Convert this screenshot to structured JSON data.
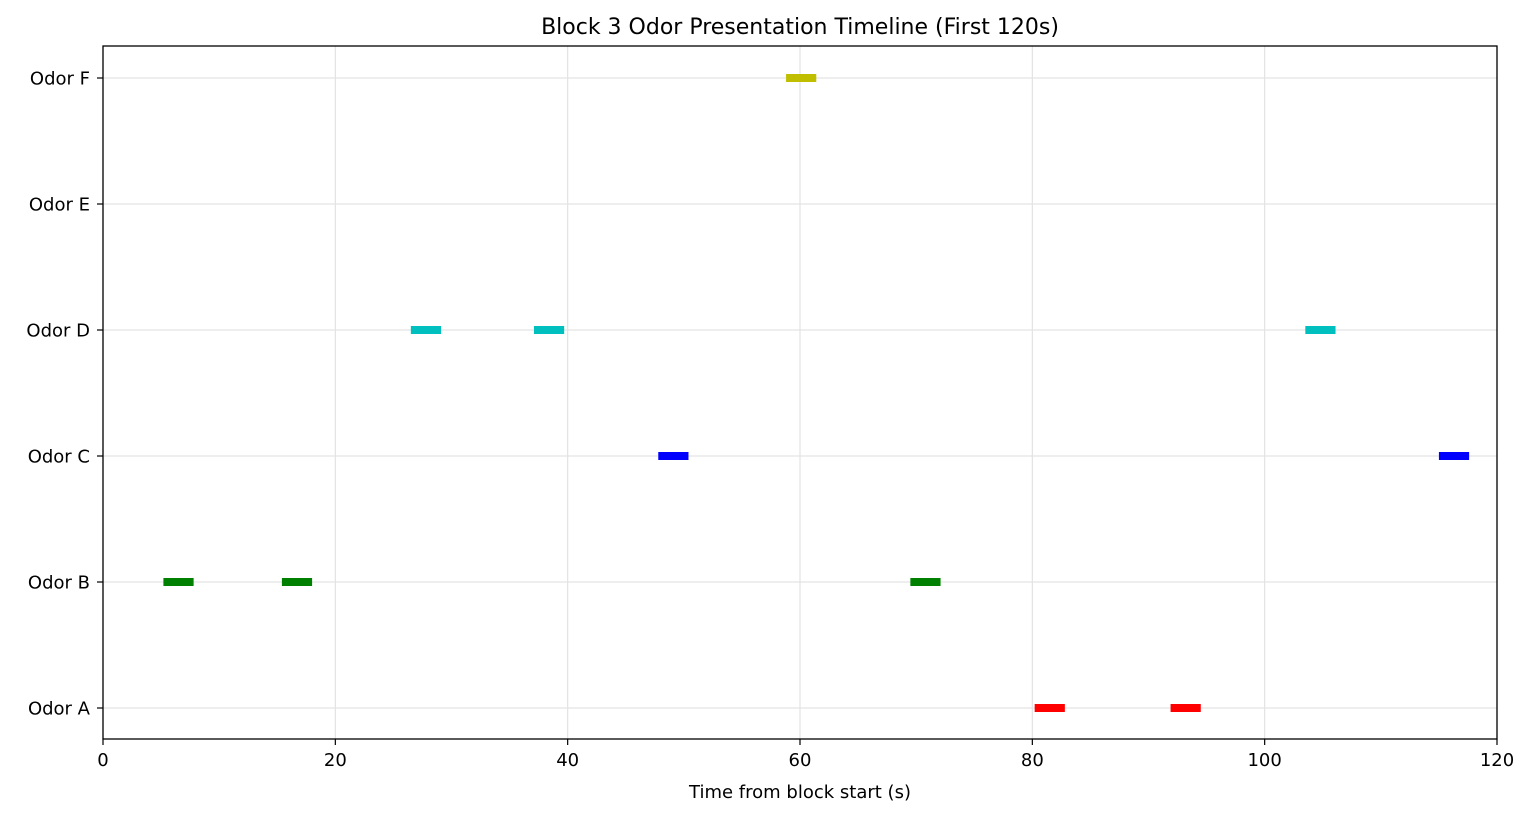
{
  "chart_data": {
    "type": "timeline",
    "title": "Block 3 Odor Presentation Timeline (First 120s)",
    "xlabel": "Time from block start (s)",
    "ylabel": "",
    "xlim": [
      0,
      120
    ],
    "xticks": [
      0,
      20,
      40,
      60,
      80,
      100,
      120
    ],
    "grid": true,
    "categories": [
      "Odor A",
      "Odor B",
      "Odor C",
      "Odor D",
      "Odor E",
      "Odor F"
    ],
    "series": [
      {
        "category": "Odor A",
        "color": "#ff0000",
        "events": [
          [
            80.2,
            82.8
          ],
          [
            91.9,
            94.5
          ]
        ]
      },
      {
        "category": "Odor B",
        "color": "#008000",
        "events": [
          [
            5.2,
            7.8
          ],
          [
            15.4,
            18.0
          ],
          [
            69.5,
            72.1
          ]
        ]
      },
      {
        "category": "Odor C",
        "color": "#0000ff",
        "events": [
          [
            47.8,
            50.4
          ],
          [
            115.0,
            117.6
          ]
        ]
      },
      {
        "category": "Odor D",
        "color": "#00bfbf",
        "events": [
          [
            26.5,
            29.1
          ],
          [
            37.1,
            39.7
          ],
          [
            103.5,
            106.1
          ]
        ]
      },
      {
        "category": "Odor E",
        "color": "#bfbf00",
        "events": []
      },
      {
        "category": "Odor F",
        "color": "#bfbf00",
        "events": [
          [
            58.8,
            61.4
          ]
        ]
      }
    ]
  }
}
